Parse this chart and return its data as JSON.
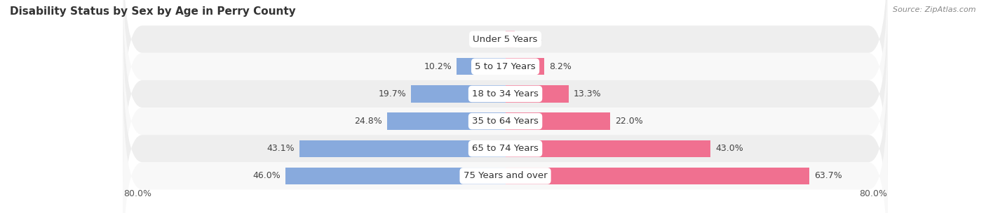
{
  "title": "Disability Status by Sex by Age in Perry County",
  "source": "Source: ZipAtlas.com",
  "categories": [
    "Under 5 Years",
    "5 to 17 Years",
    "18 to 34 Years",
    "35 to 64 Years",
    "65 to 74 Years",
    "75 Years and over"
  ],
  "male_values": [
    0.0,
    10.2,
    19.7,
    24.8,
    43.1,
    46.0
  ],
  "female_values": [
    2.0,
    8.2,
    13.3,
    22.0,
    43.0,
    63.7
  ],
  "male_color": "#88aadd",
  "female_color": "#f07090",
  "male_color_light": "#b8cce8",
  "female_color_light": "#f8b0c0",
  "row_bg_odd": "#eeeeee",
  "row_bg_even": "#f8f8f8",
  "x_min": -80.0,
  "x_max": 80.0,
  "axis_label_left": "80.0%",
  "axis_label_right": "80.0%",
  "bar_height": 0.62,
  "label_fontsize": 9,
  "title_fontsize": 11,
  "source_fontsize": 8,
  "legend_fontsize": 9,
  "value_color": "#444444"
}
